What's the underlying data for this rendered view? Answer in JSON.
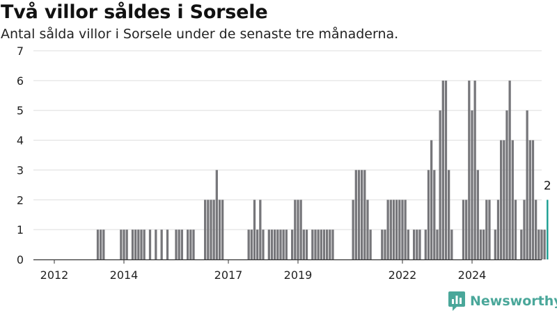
{
  "header": {
    "title": "Två villor såldes i Sorsele",
    "subtitle": "Antal sålda villor i Sorsele under de senaste tre månaderna."
  },
  "brand": {
    "name": "Newsworthy",
    "icon": "newsworthy-logo-icon",
    "color": "#4aa79a"
  },
  "colors": {
    "bar": "#76767a",
    "highlight": "#1a9e92",
    "grid": "#dddddd",
    "axis": "#333333"
  },
  "chart_data": {
    "type": "bar",
    "ylim": [
      0,
      7
    ],
    "yticks": [
      0,
      1,
      2,
      3,
      4,
      5,
      6,
      7
    ],
    "xaxis": [
      {
        "label": "2012",
        "x": 2012.0
      },
      {
        "label": "2014",
        "x": 2014.0
      },
      {
        "label": "2017",
        "x": 2017.0
      },
      {
        "label": "2019",
        "x": 2019.0
      },
      {
        "label": "2022",
        "x": 2022.0
      },
      {
        "label": "2024",
        "x": 2024.0
      }
    ],
    "xrange": [
      2011.4,
      2026.0
    ],
    "start": 2011.5,
    "step": 0.08333,
    "highlight_label": "2",
    "values": [
      0,
      0,
      0,
      0,
      0,
      0,
      0,
      0,
      0,
      0,
      0,
      0,
      0,
      0,
      0,
      0,
      0,
      0,
      0,
      0,
      0,
      1,
      1,
      1,
      0,
      0,
      0,
      0,
      0,
      1,
      1,
      1,
      0,
      1,
      1,
      1,
      1,
      1,
      0,
      1,
      0,
      1,
      0,
      1,
      0,
      1,
      0,
      0,
      1,
      1,
      1,
      0,
      1,
      1,
      1,
      0,
      0,
      0,
      2,
      2,
      2,
      2,
      3,
      2,
      2,
      0,
      0,
      0,
      0,
      0,
      0,
      0,
      0,
      1,
      1,
      2,
      1,
      2,
      1,
      0,
      1,
      1,
      1,
      1,
      1,
      1,
      1,
      0,
      1,
      2,
      2,
      2,
      1,
      1,
      0,
      1,
      1,
      1,
      1,
      1,
      1,
      1,
      1,
      0,
      0,
      0,
      0,
      0,
      0,
      2,
      3,
      3,
      3,
      3,
      2,
      1,
      0,
      0,
      0,
      1,
      1,
      2,
      2,
      2,
      2,
      2,
      2,
      2,
      1,
      0,
      1,
      1,
      1,
      0,
      1,
      3,
      4,
      3,
      1,
      5,
      6,
      6,
      3,
      1,
      0,
      0,
      0,
      2,
      2,
      6,
      5,
      6,
      3,
      1,
      1,
      2,
      2,
      0,
      1,
      2,
      4,
      4,
      5,
      6,
      4,
      2,
      0,
      1,
      2,
      5,
      4,
      4,
      2,
      1,
      1,
      1,
      2
    ]
  }
}
